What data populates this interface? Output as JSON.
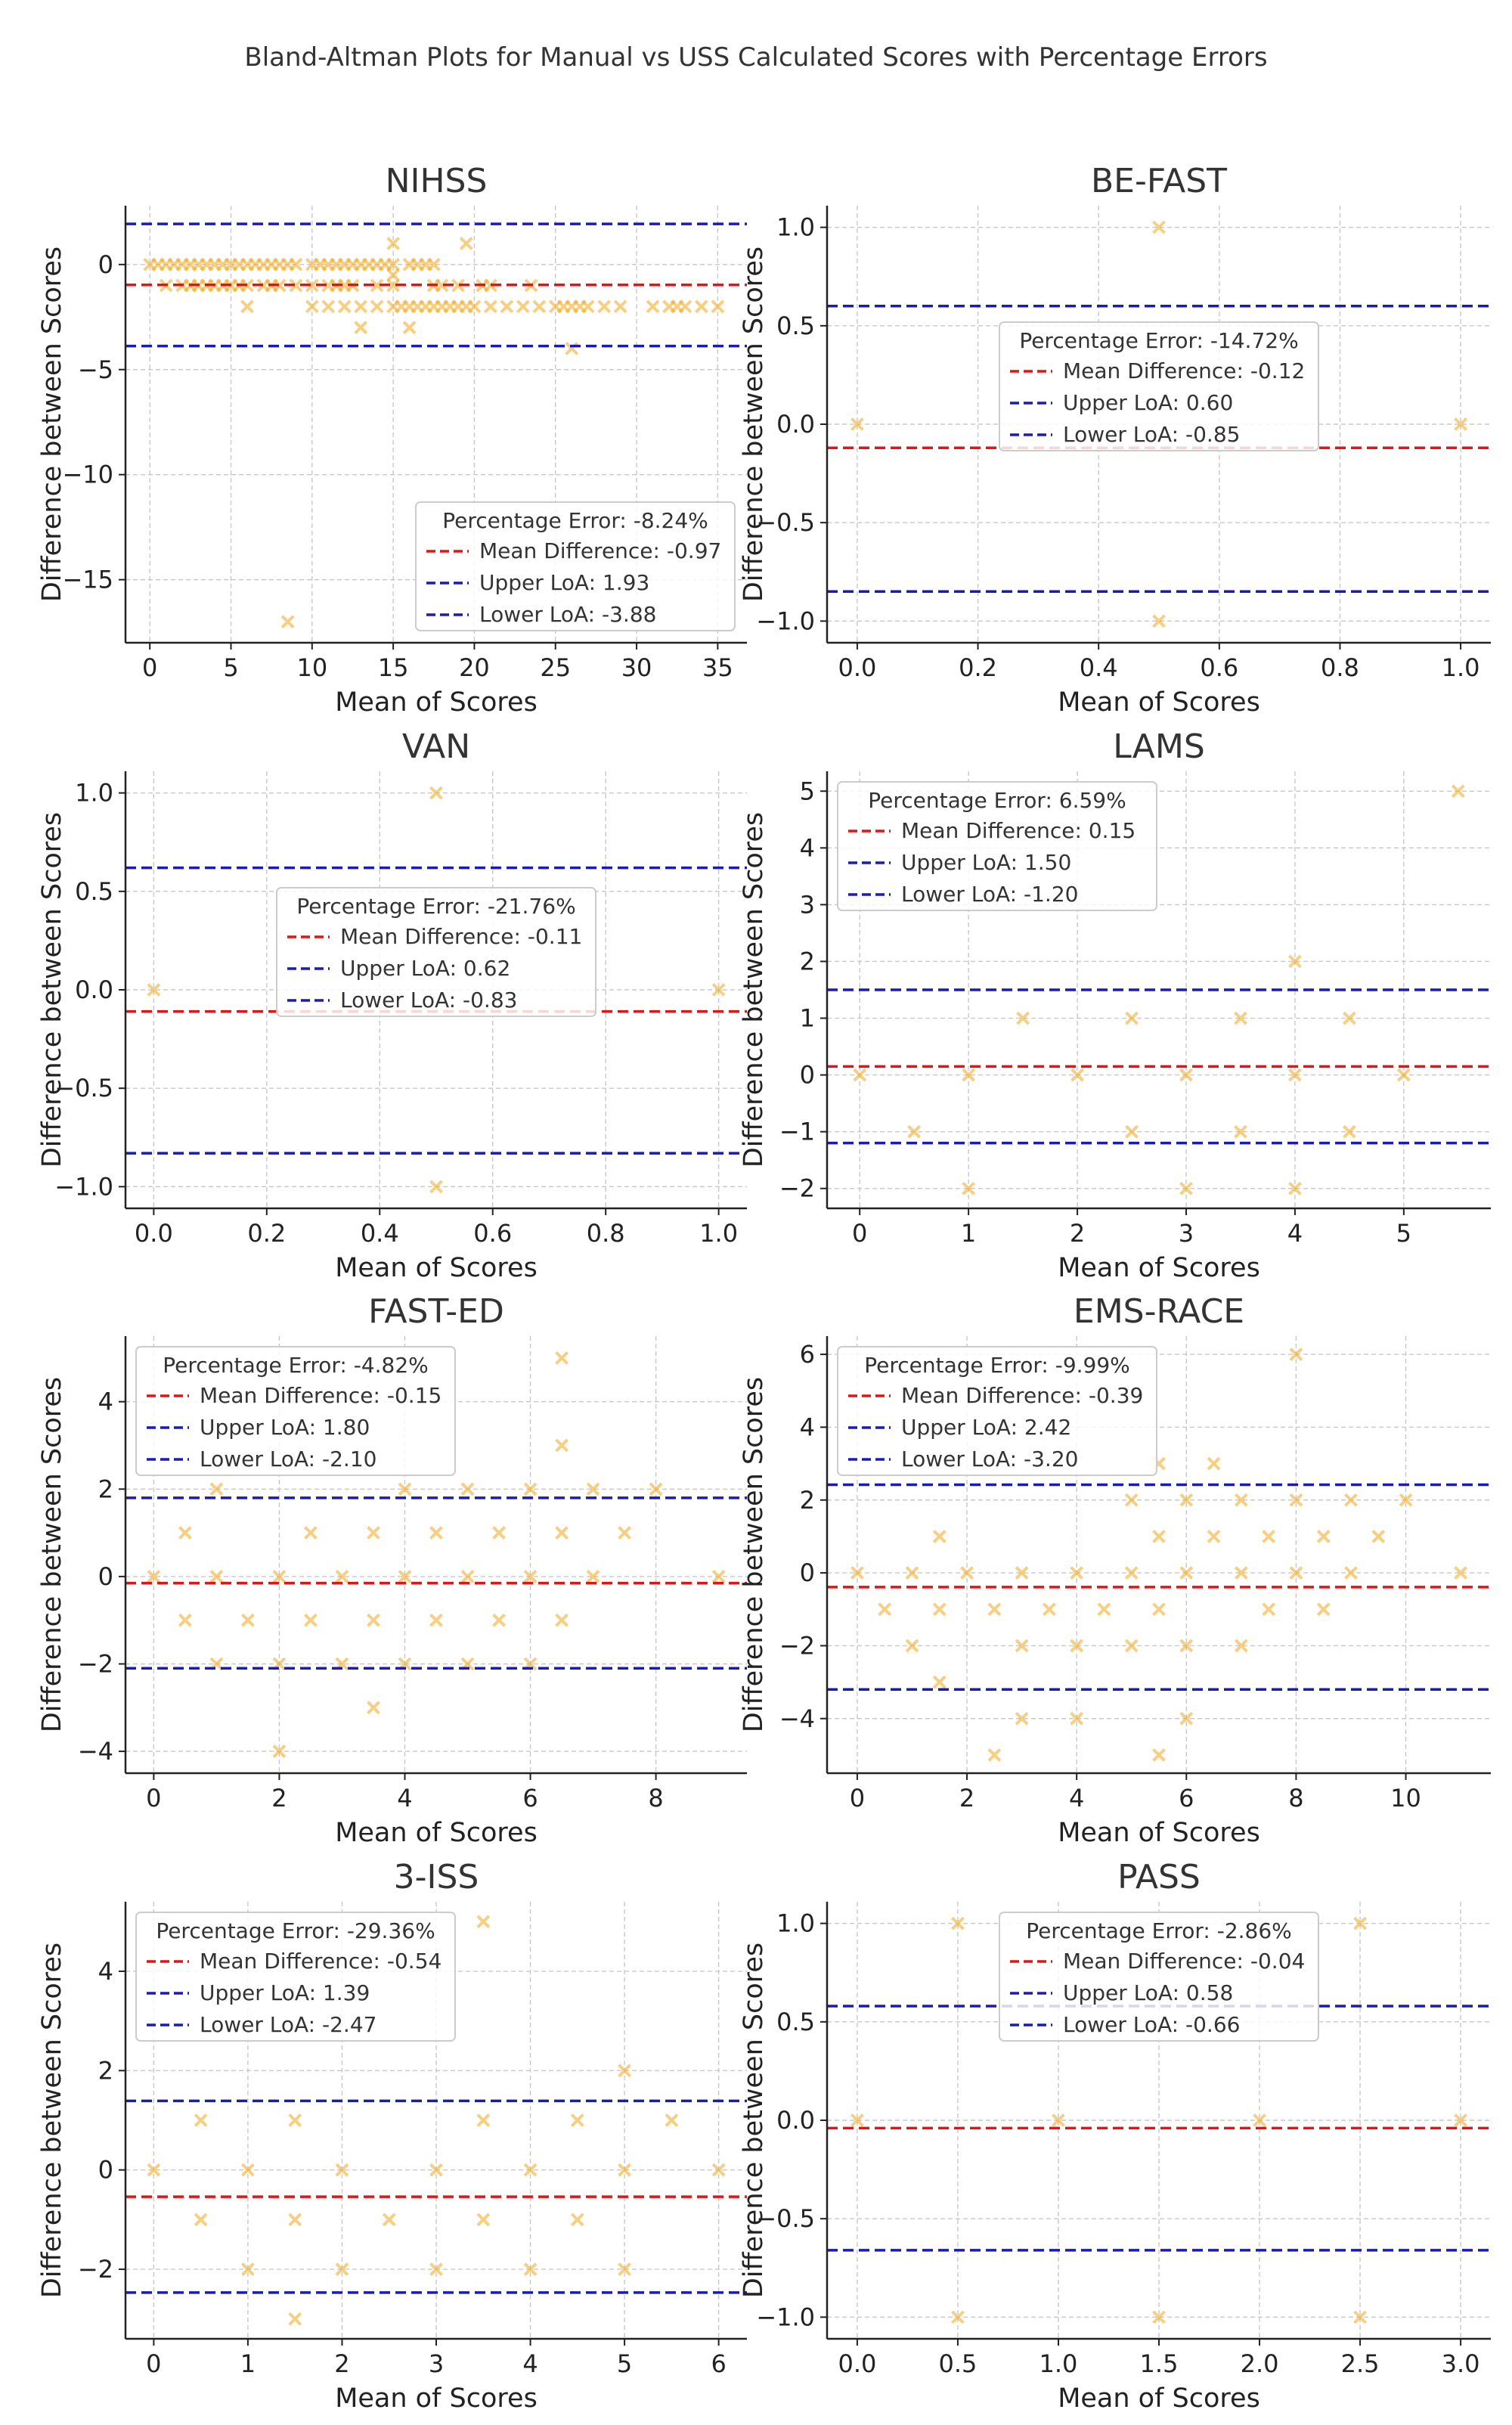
{
  "figure": {
    "title": "Bland-Altman Plots for Manual vs USS Calculated Scores with Percentage Errors"
  },
  "colors": {
    "point": "#f0a81e",
    "mean_line": "#e01616",
    "loa_line": "#1a1ab4",
    "grid": "#c8c8c8"
  },
  "chart_data": [
    {
      "type": "scatter",
      "title": "NIHSS",
      "xlabel": "Mean of Scores",
      "ylabel": "Difference between Scores",
      "xlim": [
        -1.5,
        36.8
      ],
      "ylim": [
        -18,
        2.8
      ],
      "xticks": [
        0,
        5,
        10,
        15,
        20,
        25,
        30,
        35
      ],
      "yticks": [
        0,
        -5,
        -10,
        -15
      ],
      "mean_diff": -0.97,
      "upper_loa": 1.93,
      "lower_loa": -3.88,
      "legend": {
        "percentage_error": "Percentage Error: -8.24%",
        "mean_label": "Mean Difference: -0.97",
        "upper_label": "Upper LoA: 1.93",
        "lower_label": "Lower LoA: -3.88",
        "position": "lower-right"
      },
      "points": [
        [
          0,
          0
        ],
        [
          0.5,
          0
        ],
        [
          1,
          0
        ],
        [
          1.5,
          0
        ],
        [
          2,
          0
        ],
        [
          2.5,
          0
        ],
        [
          3,
          0
        ],
        [
          3.5,
          0
        ],
        [
          4,
          0
        ],
        [
          4.5,
          0
        ],
        [
          5,
          0
        ],
        [
          5.5,
          0
        ],
        [
          6,
          0
        ],
        [
          6.5,
          0
        ],
        [
          7,
          0
        ],
        [
          7.5,
          0
        ],
        [
          8,
          0
        ],
        [
          8.5,
          0
        ],
        [
          9,
          0
        ],
        [
          10,
          0
        ],
        [
          10.5,
          0
        ],
        [
          11,
          0
        ],
        [
          11.5,
          0
        ],
        [
          12,
          0
        ],
        [
          12.5,
          0
        ],
        [
          13,
          0
        ],
        [
          13.5,
          0
        ],
        [
          14,
          0
        ],
        [
          14.5,
          0
        ],
        [
          15,
          0
        ],
        [
          16,
          0
        ],
        [
          16.5,
          0
        ],
        [
          17,
          0
        ],
        [
          17.5,
          0
        ],
        [
          1,
          -1
        ],
        [
          2,
          -1
        ],
        [
          2.5,
          -1
        ],
        [
          3,
          -1
        ],
        [
          3.5,
          -1
        ],
        [
          4,
          -1
        ],
        [
          4.5,
          -1
        ],
        [
          5,
          -1
        ],
        [
          5.5,
          -1
        ],
        [
          6,
          -1
        ],
        [
          7,
          -1
        ],
        [
          7.5,
          -1
        ],
        [
          8,
          -1
        ],
        [
          9,
          -1
        ],
        [
          10,
          -1
        ],
        [
          11,
          -1
        ],
        [
          11.5,
          -1
        ],
        [
          12,
          -1
        ],
        [
          12.5,
          -1
        ],
        [
          14,
          -1
        ],
        [
          15,
          -1
        ],
        [
          17.5,
          -1
        ],
        [
          18,
          -1
        ],
        [
          19,
          -1
        ],
        [
          20.5,
          -1
        ],
        [
          21,
          -1
        ],
        [
          23.5,
          -1
        ],
        [
          6,
          -2
        ],
        [
          10,
          -2
        ],
        [
          11,
          -2
        ],
        [
          12,
          -2
        ],
        [
          13,
          -2
        ],
        [
          14,
          -2
        ],
        [
          15,
          -2
        ],
        [
          15.5,
          -2
        ],
        [
          16,
          -2
        ],
        [
          16.5,
          -2
        ],
        [
          17,
          -2
        ],
        [
          17.5,
          -2
        ],
        [
          18,
          -2
        ],
        [
          18.5,
          -2
        ],
        [
          19,
          -2
        ],
        [
          19.5,
          -2
        ],
        [
          20,
          -2
        ],
        [
          21,
          -2
        ],
        [
          22,
          -2
        ],
        [
          23,
          -2
        ],
        [
          24,
          -2
        ],
        [
          25,
          -2
        ],
        [
          25.5,
          -2
        ],
        [
          26,
          -2
        ],
        [
          26.5,
          -2
        ],
        [
          27,
          -2
        ],
        [
          28,
          -2
        ],
        [
          29,
          -2
        ],
        [
          31,
          -2
        ],
        [
          32,
          -2
        ],
        [
          32.5,
          -2
        ],
        [
          33,
          -2
        ],
        [
          34,
          -2
        ],
        [
          35,
          -2
        ],
        [
          13,
          -3
        ],
        [
          16,
          -3
        ],
        [
          26,
          -4
        ],
        [
          15,
          1
        ],
        [
          19.5,
          1
        ],
        [
          15,
          -0.5
        ],
        [
          8.5,
          -17
        ]
      ]
    },
    {
      "type": "scatter",
      "title": "BE-FAST",
      "xlabel": "Mean of Scores",
      "ylabel": "Difference between Scores",
      "xlim": [
        -0.05,
        1.05
      ],
      "ylim": [
        -1.11,
        1.11
      ],
      "xticks": [
        0.0,
        0.2,
        0.4,
        0.6,
        0.8,
        1.0
      ],
      "xtick_labels": [
        "0.0",
        "0.2",
        "0.4",
        "0.6",
        "0.8",
        "1.0"
      ],
      "yticks": [
        1.0,
        0.5,
        0.0,
        -0.5,
        -1.0
      ],
      "ytick_labels": [
        "1.0",
        "0.5",
        "0.0",
        "−0.5",
        "−1.0"
      ],
      "mean_diff": -0.12,
      "upper_loa": 0.6,
      "lower_loa": -0.85,
      "legend": {
        "percentage_error": "Percentage Error: -14.72%",
        "mean_label": "Mean Difference: -0.12",
        "upper_label": "Upper LoA: 0.60",
        "lower_label": "Lower LoA: -0.85",
        "position": "center"
      },
      "points": [
        [
          0,
          0
        ],
        [
          1,
          0
        ],
        [
          0.5,
          1
        ],
        [
          0.5,
          -1
        ]
      ]
    },
    {
      "type": "scatter",
      "title": "VAN",
      "xlabel": "Mean of Scores",
      "ylabel": "Difference between Scores",
      "xlim": [
        -0.05,
        1.05
      ],
      "ylim": [
        -1.11,
        1.11
      ],
      "xticks": [
        0.0,
        0.2,
        0.4,
        0.6,
        0.8,
        1.0
      ],
      "xtick_labels": [
        "0.0",
        "0.2",
        "0.4",
        "0.6",
        "0.8",
        "1.0"
      ],
      "yticks": [
        1.0,
        0.5,
        0.0,
        -0.5,
        -1.0
      ],
      "ytick_labels": [
        "1.0",
        "0.5",
        "0.0",
        "−0.5",
        "−1.0"
      ],
      "mean_diff": -0.11,
      "upper_loa": 0.62,
      "lower_loa": -0.83,
      "legend": {
        "percentage_error": "Percentage Error: -21.76%",
        "mean_label": "Mean Difference: -0.11",
        "upper_label": "Upper LoA: 0.62",
        "lower_label": "Lower LoA: -0.83",
        "position": "center"
      },
      "points": [
        [
          0,
          0
        ],
        [
          1,
          0
        ],
        [
          0.5,
          1
        ],
        [
          0.5,
          -1
        ]
      ]
    },
    {
      "type": "scatter",
      "title": "LAMS",
      "xlabel": "Mean of Scores",
      "ylabel": "Difference between Scores",
      "xlim": [
        -0.3,
        5.8
      ],
      "ylim": [
        -2.35,
        5.35
      ],
      "xticks": [
        0,
        1,
        2,
        3,
        4,
        5
      ],
      "yticks": [
        5,
        4,
        3,
        2,
        1,
        0,
        -1,
        -2
      ],
      "mean_diff": 0.15,
      "upper_loa": 1.5,
      "lower_loa": -1.2,
      "legend": {
        "percentage_error": "Percentage Error: 6.59%",
        "mean_label": "Mean Difference: 0.15",
        "upper_label": "Upper LoA: 1.50",
        "lower_label": "Lower LoA: -1.20",
        "position": "upper-left"
      },
      "points": [
        [
          0,
          0
        ],
        [
          1,
          0
        ],
        [
          2,
          0
        ],
        [
          3,
          0
        ],
        [
          4,
          0
        ],
        [
          5,
          0
        ],
        [
          0.5,
          -1
        ],
        [
          1,
          -2
        ],
        [
          1.5,
          1
        ],
        [
          2.5,
          1
        ],
        [
          2.5,
          -1
        ],
        [
          3,
          -2
        ],
        [
          3.5,
          1
        ],
        [
          3.5,
          -1
        ],
        [
          4,
          2
        ],
        [
          4,
          -2
        ],
        [
          4.5,
          1
        ],
        [
          4.5,
          -1
        ],
        [
          5.5,
          5
        ]
      ]
    },
    {
      "type": "scatter",
      "title": "FAST-ED",
      "xlabel": "Mean of Scores",
      "ylabel": "Difference between Scores",
      "xlim": [
        -0.45,
        9.45
      ],
      "ylim": [
        -4.5,
        5.5
      ],
      "xticks": [
        0,
        2,
        4,
        6,
        8
      ],
      "yticks": [
        4,
        2,
        0,
        -2,
        -4
      ],
      "mean_diff": -0.15,
      "upper_loa": 1.8,
      "lower_loa": -2.1,
      "legend": {
        "percentage_error": "Percentage Error: -4.82%",
        "mean_label": "Mean Difference: -0.15",
        "upper_label": "Upper LoA: 1.80",
        "lower_label": "Lower LoA: -2.10",
        "position": "upper-left"
      },
      "points": [
        [
          0,
          0
        ],
        [
          1,
          0
        ],
        [
          2,
          0
        ],
        [
          3,
          0
        ],
        [
          4,
          0
        ],
        [
          5,
          0
        ],
        [
          6,
          0
        ],
        [
          7,
          0
        ],
        [
          9,
          0
        ],
        [
          0.5,
          1
        ],
        [
          0.5,
          -1
        ],
        [
          1,
          2
        ],
        [
          1,
          -2
        ],
        [
          1.5,
          -1
        ],
        [
          2,
          -2
        ],
        [
          2,
          -4
        ],
        [
          2.5,
          1
        ],
        [
          2.5,
          -1
        ],
        [
          3,
          -2
        ],
        [
          3.5,
          1
        ],
        [
          3.5,
          -1
        ],
        [
          3.5,
          -3
        ],
        [
          4,
          2
        ],
        [
          4,
          -2
        ],
        [
          4.5,
          1
        ],
        [
          4.5,
          -1
        ],
        [
          5,
          2
        ],
        [
          5,
          -2
        ],
        [
          5.5,
          1
        ],
        [
          5.5,
          -1
        ],
        [
          6,
          2
        ],
        [
          6,
          -2
        ],
        [
          6.5,
          5
        ],
        [
          6.5,
          3
        ],
        [
          6.5,
          1
        ],
        [
          6.5,
          -1
        ],
        [
          7,
          2
        ],
        [
          7.5,
          1
        ],
        [
          8,
          2
        ]
      ]
    },
    {
      "type": "scatter",
      "title": "EMS-RACE",
      "xlabel": "Mean of Scores",
      "ylabel": "Difference between Scores",
      "xlim": [
        -0.55,
        11.55
      ],
      "ylim": [
        -5.5,
        6.5
      ],
      "xticks": [
        0,
        2,
        4,
        6,
        8,
        10
      ],
      "yticks": [
        6,
        4,
        2,
        0,
        -2,
        -4
      ],
      "mean_diff": -0.39,
      "upper_loa": 2.42,
      "lower_loa": -3.2,
      "legend": {
        "percentage_error": "Percentage Error: -9.99%",
        "mean_label": "Mean Difference: -0.39",
        "upper_label": "Upper LoA: 2.42",
        "lower_label": "Lower LoA: -3.20",
        "position": "upper-left"
      },
      "points": [
        [
          0,
          0
        ],
        [
          1,
          0
        ],
        [
          2,
          0
        ],
        [
          3,
          0
        ],
        [
          4,
          0
        ],
        [
          5,
          0
        ],
        [
          6,
          0
        ],
        [
          7,
          0
        ],
        [
          8,
          0
        ],
        [
          9,
          0
        ],
        [
          11,
          0
        ],
        [
          0.5,
          -1
        ],
        [
          1,
          -2
        ],
        [
          1.5,
          1
        ],
        [
          1.5,
          -1
        ],
        [
          1.5,
          -3
        ],
        [
          2.5,
          -1
        ],
        [
          2.5,
          -5
        ],
        [
          3,
          -2
        ],
        [
          3,
          -4
        ],
        [
          3.5,
          -1
        ],
        [
          4,
          -2
        ],
        [
          4,
          -4
        ],
        [
          4.5,
          -1
        ],
        [
          5,
          2
        ],
        [
          5,
          -2
        ],
        [
          5.5,
          1
        ],
        [
          5.5,
          -1
        ],
        [
          5.5,
          3
        ],
        [
          5.5,
          -5
        ],
        [
          6,
          2
        ],
        [
          6,
          -2
        ],
        [
          6,
          -4
        ],
        [
          6.5,
          3
        ],
        [
          6.5,
          1
        ],
        [
          7,
          2
        ],
        [
          7,
          -2
        ],
        [
          7.5,
          1
        ],
        [
          7.5,
          -1
        ],
        [
          8,
          2
        ],
        [
          8,
          6
        ],
        [
          8.5,
          1
        ],
        [
          8.5,
          -1
        ],
        [
          9,
          2
        ],
        [
          9.5,
          1
        ],
        [
          10,
          2
        ]
      ]
    },
    {
      "type": "scatter",
      "title": "3-ISS",
      "xlabel": "Mean of Scores",
      "ylabel": "Difference between Scores",
      "xlim": [
        -0.3,
        6.3
      ],
      "ylim": [
        -3.4,
        5.4
      ],
      "xticks": [
        0,
        1,
        2,
        3,
        4,
        5,
        6
      ],
      "yticks": [
        4,
        2,
        0,
        -2
      ],
      "mean_diff": -0.54,
      "upper_loa": 1.39,
      "lower_loa": -2.47,
      "legend": {
        "percentage_error": "Percentage Error: -29.36%",
        "mean_label": "Mean Difference: -0.54",
        "upper_label": "Upper LoA: 1.39",
        "lower_label": "Lower LoA: -2.47",
        "position": "upper-left"
      },
      "points": [
        [
          0,
          0
        ],
        [
          1,
          0
        ],
        [
          2,
          0
        ],
        [
          3,
          0
        ],
        [
          4,
          0
        ],
        [
          5,
          0
        ],
        [
          6,
          0
        ],
        [
          0.5,
          1
        ],
        [
          0.5,
          -1
        ],
        [
          1,
          -2
        ],
        [
          1.5,
          1
        ],
        [
          1.5,
          -1
        ],
        [
          1.5,
          -3
        ],
        [
          2,
          -2
        ],
        [
          2.5,
          -1
        ],
        [
          3,
          -2
        ],
        [
          3.5,
          1
        ],
        [
          3.5,
          -1
        ],
        [
          3.5,
          5
        ],
        [
          4,
          -2
        ],
        [
          4.5,
          1
        ],
        [
          4.5,
          -1
        ],
        [
          5,
          2
        ],
        [
          5,
          -2
        ],
        [
          5.5,
          1
        ]
      ]
    },
    {
      "type": "scatter",
      "title": "PASS",
      "xlabel": "Mean of Scores",
      "ylabel": "Difference between Scores",
      "xlim": [
        -0.15,
        3.15
      ],
      "ylim": [
        -1.11,
        1.11
      ],
      "xticks": [
        0.0,
        0.5,
        1.0,
        1.5,
        2.0,
        2.5,
        3.0
      ],
      "xtick_labels": [
        "0.0",
        "0.5",
        "1.0",
        "1.5",
        "2.0",
        "2.5",
        "3.0"
      ],
      "yticks": [
        1.0,
        0.5,
        0.0,
        -0.5,
        -1.0
      ],
      "ytick_labels": [
        "1.0",
        "0.5",
        "0.0",
        "−0.5",
        "−1.0"
      ],
      "mean_diff": -0.04,
      "upper_loa": 0.58,
      "lower_loa": -0.66,
      "legend": {
        "percentage_error": "Percentage Error: -2.86%",
        "mean_label": "Mean Difference: -0.04",
        "upper_label": "Upper LoA: 0.58",
        "lower_label": "Lower LoA: -0.66",
        "position": "upper-center"
      },
      "points": [
        [
          0,
          0
        ],
        [
          1,
          0
        ],
        [
          2,
          0
        ],
        [
          3,
          0
        ],
        [
          0.5,
          1
        ],
        [
          0.5,
          -1
        ],
        [
          1.5,
          -1
        ],
        [
          2.5,
          1
        ],
        [
          2.5,
          -1
        ]
      ]
    }
  ]
}
